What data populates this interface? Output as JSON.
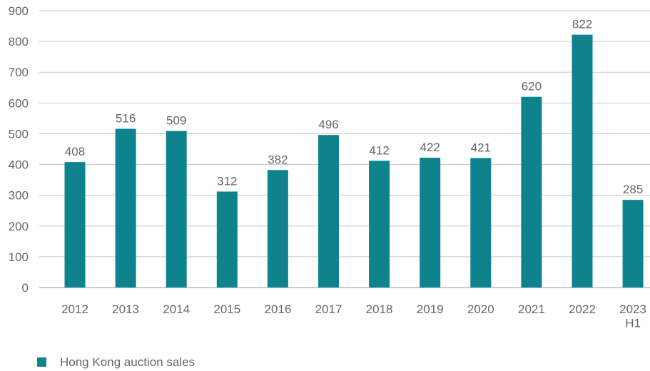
{
  "chart_data": {
    "type": "bar",
    "categories": [
      "2012",
      "2013",
      "2014",
      "2015",
      "2016",
      "2017",
      "2018",
      "2019",
      "2020",
      "2021",
      "2022",
      "2023\nH1"
    ],
    "series": [
      {
        "name": "Hong Kong auction sales",
        "color": "#0e838d",
        "values": [
          408,
          516,
          509,
          312,
          382,
          496,
          412,
          422,
          421,
          620,
          822,
          285
        ]
      }
    ],
    "ylim": [
      0,
      900
    ],
    "yticks": [
      0,
      100,
      200,
      300,
      400,
      500,
      600,
      700,
      800,
      900
    ],
    "grid": true,
    "legend": "bottom-left"
  }
}
